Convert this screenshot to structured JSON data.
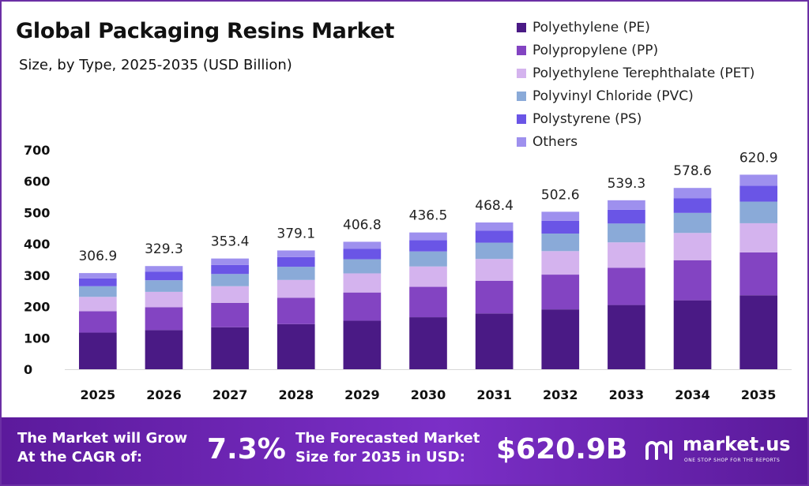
{
  "header": {
    "title": "Global Packaging Resins Market",
    "subtitle": "Size, by Type, 2025-2035 (USD Billion)"
  },
  "legend": [
    {
      "label": "Polyethylene (PE)",
      "color": "#4a1a85"
    },
    {
      "label": "Polypropylene (PP)",
      "color": "#8344c2"
    },
    {
      "label": "Polyethylene Terephthalate (PET)",
      "color": "#d4b3ee"
    },
    {
      "label": "Polyvinyl Chloride (PVC)",
      "color": "#8aaad8"
    },
    {
      "label": "Polystyrene (PS)",
      "color": "#6a55e6"
    },
    {
      "label": "Others",
      "color": "#9e90ee"
    }
  ],
  "chart_data": {
    "type": "bar",
    "stacked": true,
    "title": "Global Packaging Resins Market",
    "subtitle": "Size, by Type, 2025-2035 (USD Billion)",
    "categories": [
      "2025",
      "2026",
      "2027",
      "2028",
      "2029",
      "2030",
      "2031",
      "2032",
      "2033",
      "2034",
      "2035"
    ],
    "totals": [
      306.9,
      329.3,
      353.4,
      379.1,
      406.8,
      436.5,
      468.4,
      502.6,
      539.3,
      578.6,
      620.9
    ],
    "total_labels": [
      "306.9",
      "329.3",
      "353.4",
      "379.1",
      "406.8",
      "436.5",
      "468.4",
      "502.6",
      "539.3",
      "578.6",
      "620.9"
    ],
    "series": [
      {
        "name": "Polyethylene (PE)",
        "color": "#4a1a85",
        "values": [
          117,
          125,
          134,
          144,
          155,
          166,
          178,
          191,
          205,
          220,
          236
        ]
      },
      {
        "name": "Polypropylene (PP)",
        "color": "#8344c2",
        "values": [
          68,
          73,
          78,
          84,
          90,
          97,
          104,
          111,
          119,
          128,
          137
        ]
      },
      {
        "name": "Polyethylene Terephthalate (PET)",
        "color": "#d4b3ee",
        "values": [
          46,
          49,
          53,
          57,
          61,
          65,
          70,
          75,
          81,
          87,
          93
        ]
      },
      {
        "name": "Polyvinyl Chloride (PVC)",
        "color": "#8aaad8",
        "values": [
          34,
          37,
          39,
          42,
          45,
          48,
          52,
          56,
          60,
          64,
          69
        ]
      },
      {
        "name": "Polystyrene (PS)",
        "color": "#6a55e6",
        "values": [
          25,
          27,
          29,
          31,
          33,
          36,
          38,
          41,
          44,
          47,
          51
        ]
      },
      {
        "name": "Others",
        "color": "#9e90ee",
        "values": [
          16.9,
          18.3,
          20.4,
          21.1,
          22.8,
          24.5,
          26.4,
          28.6,
          30.3,
          32.6,
          34.9
        ]
      }
    ],
    "yticks": [
      0,
      100,
      200,
      300,
      400,
      500,
      600,
      700
    ],
    "ylim": [
      0,
      700
    ],
    "xlabel": "",
    "ylabel": "",
    "grid": false,
    "legend_position": "top-right"
  },
  "banner": {
    "cagr_line1": "The Market will Grow",
    "cagr_line2": "At the CAGR of:",
    "cagr_value": "7.3%",
    "forecast_line1": "The Forecasted Market",
    "forecast_line2": "Size for 2035 in USD:",
    "forecast_value": "$620.9B",
    "brand": "market.us",
    "tagline": "ONE STOP SHOP FOR THE REPORTS"
  }
}
